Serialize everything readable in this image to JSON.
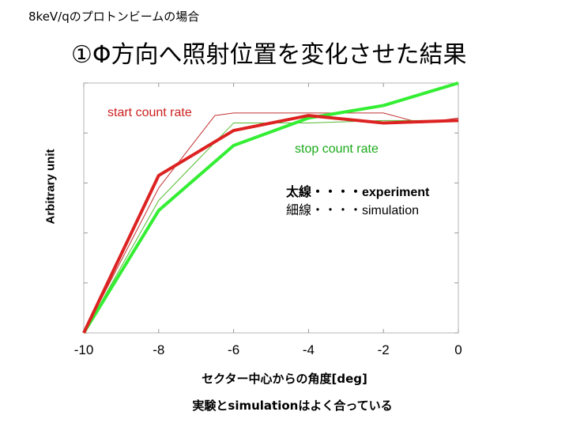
{
  "header": {
    "corner_title": "8keV/qのプロトンビームの場合",
    "main_title": "①Φ方向へ照射位置を変化させた結果"
  },
  "legend": {
    "thick_line": "太線・・・・experiment",
    "thin_line": "細線・・・・simulation"
  },
  "footer": {
    "note": "実験とsimulationはよく合っている"
  },
  "colors": {
    "start_series": "#dd2222",
    "stop_series": "#33ee33",
    "start_label": "#cc2020",
    "stop_label": "#1aaa1a"
  },
  "chart_data": {
    "type": "line",
    "title": "①Φ方向へ照射位置を変化させた結果",
    "xlabel": "セクター中心からの角度[deg]",
    "ylabel": "Arbitrary unit",
    "xlim": [
      -10,
      0
    ],
    "ylim": [
      0,
      1.0
    ],
    "xticks": [
      -10,
      -8,
      -6,
      -4,
      -2,
      0
    ],
    "yticks_labeled": false,
    "grid": false,
    "series": [
      {
        "name": "start count rate",
        "kind": "experiment",
        "x": [
          -10,
          -8,
          -6,
          -4,
          -2,
          0
        ],
        "y": [
          0.0,
          0.63,
          0.81,
          0.87,
          0.84,
          0.85
        ]
      },
      {
        "name": "stop count rate",
        "kind": "experiment",
        "x": [
          -10,
          -8,
          -6,
          -4,
          -2,
          0
        ],
        "y": [
          0.0,
          0.49,
          0.75,
          0.86,
          0.91,
          1.0
        ]
      },
      {
        "name": "start count rate",
        "kind": "simulation",
        "x": [
          -10,
          -8,
          -6.5,
          -6,
          -4,
          -2,
          -1,
          0
        ],
        "y": [
          0.0,
          0.58,
          0.87,
          0.88,
          0.88,
          0.88,
          0.84,
          0.86
        ]
      },
      {
        "name": "stop count rate",
        "kind": "simulation",
        "x": [
          -10,
          -8,
          -6,
          -4,
          -2,
          0
        ],
        "y": [
          0.0,
          0.53,
          0.84,
          0.84,
          0.85,
          0.85
        ]
      }
    ]
  }
}
